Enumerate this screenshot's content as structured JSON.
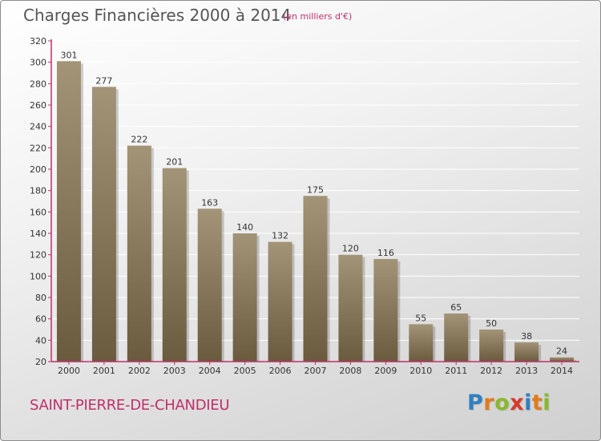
{
  "title": "Charges Financières 2000 à 2014",
  "subtitle": "(en milliers d'€)",
  "commune": "SAINT-PIERRE-DE-CHANDIEU",
  "logo": {
    "letters": [
      "P",
      "r",
      "o",
      "x",
      "i",
      "t",
      "i"
    ],
    "colors": [
      "#2f7fc1",
      "#e07b1a",
      "#8ab72e",
      "#d63a2a",
      "#2f7fc1",
      "#e07b1a",
      "#8ab72e"
    ]
  },
  "colors": {
    "bar_top": "#a39477",
    "bar_bottom": "#6a5a3e",
    "axis": "#c0306a",
    "grid": "#ffffff",
    "text": "#333333"
  },
  "chart_data": {
    "type": "bar",
    "categories": [
      "2000",
      "2001",
      "2002",
      "2003",
      "2004",
      "2005",
      "2006",
      "2007",
      "2008",
      "2009",
      "2010",
      "2011",
      "2012",
      "2013",
      "2014"
    ],
    "values": [
      301,
      277,
      222,
      201,
      163,
      140,
      132,
      175,
      120,
      116,
      55,
      65,
      50,
      38,
      24
    ],
    "ylim": [
      20,
      320
    ],
    "yticks": [
      20,
      40,
      60,
      80,
      100,
      120,
      140,
      160,
      180,
      200,
      220,
      240,
      260,
      280,
      300,
      320
    ],
    "grid": true,
    "xlabel": "",
    "ylabel": ""
  }
}
